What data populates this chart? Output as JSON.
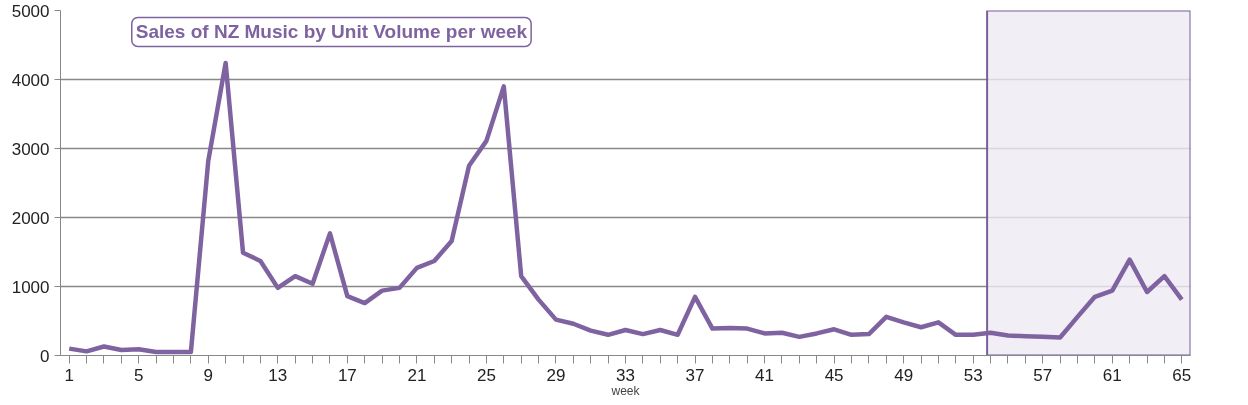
{
  "chart_data": {
    "type": "line",
    "title": "Sales of NZ Music by Unit Volume per week",
    "xlabel": "week",
    "x": [
      1,
      2,
      3,
      4,
      5,
      6,
      7,
      8,
      9,
      10,
      11,
      12,
      13,
      14,
      15,
      16,
      17,
      18,
      19,
      20,
      21,
      22,
      23,
      24,
      25,
      26,
      27,
      28,
      29,
      30,
      31,
      32,
      33,
      34,
      35,
      36,
      37,
      38,
      39,
      40,
      41,
      42,
      43,
      44,
      45,
      46,
      47,
      48,
      49,
      50,
      51,
      52,
      53,
      54,
      55,
      56,
      57,
      58,
      59,
      60,
      61,
      62,
      63,
      64,
      65
    ],
    "series": [
      {
        "color": "#7f63a1",
        "values": [
          100,
          60,
          130,
          80,
          90,
          50,
          50,
          50,
          2820,
          4240,
          1490,
          1370,
          980,
          1150,
          1040,
          1770,
          860,
          760,
          940,
          980,
          1270,
          1370,
          1660,
          2750,
          3110,
          3900,
          1150,
          810,
          520,
          460,
          360,
          300,
          370,
          310,
          370,
          300,
          850,
          390,
          400,
          390,
          320,
          330,
          270,
          320,
          380,
          300,
          310,
          560,
          480,
          410,
          480,
          300,
          300,
          330,
          290,
          280,
          270,
          260,
          560,
          850,
          940,
          1390,
          920,
          1150,
          810
        ]
      }
    ],
    "xlim": [
      0.5,
      65.5
    ],
    "ylim": [
      0,
      5000
    ],
    "yticks": [
      0,
      1000,
      2000,
      3000,
      4000,
      5000
    ],
    "xticks": [
      1,
      {
        "value": 2,
        "label": null
      },
      {
        "value": 3,
        "label": null
      },
      {
        "value": 4,
        "label": null
      },
      5,
      {
        "value": 6,
        "label": null
      },
      {
        "value": 7,
        "label": null
      },
      {
        "value": 8,
        "label": null
      },
      9,
      {
        "value": 10,
        "label": null
      },
      {
        "value": 11,
        "label": null
      },
      {
        "value": 12,
        "label": null
      },
      13,
      {
        "value": 14,
        "label": null
      },
      {
        "value": 15,
        "label": null
      },
      {
        "value": 16,
        "label": null
      },
      17,
      {
        "value": 18,
        "label": null
      },
      {
        "value": 19,
        "label": null
      },
      {
        "value": 20,
        "label": null
      },
      21,
      {
        "value": 22,
        "label": null
      },
      {
        "value": 23,
        "label": null
      },
      {
        "value": 24,
        "label": null
      },
      25,
      {
        "value": 26,
        "label": null
      },
      {
        "value": 27,
        "label": null
      },
      {
        "value": 28,
        "label": null
      },
      29,
      {
        "value": 30,
        "label": null
      },
      {
        "value": 31,
        "label": null
      },
      {
        "value": 32,
        "label": null
      },
      33,
      {
        "value": 34,
        "label": null
      },
      {
        "value": 35,
        "label": null
      },
      {
        "value": 36,
        "label": null
      },
      37,
      {
        "value": 38,
        "label": null
      },
      {
        "value": 39,
        "label": null
      },
      {
        "value": 40,
        "label": null
      },
      41,
      {
        "value": 42,
        "label": null
      },
      {
        "value": 43,
        "label": null
      },
      {
        "value": 44,
        "label": null
      },
      45,
      {
        "value": 46,
        "label": null
      },
      {
        "value": 47,
        "label": null
      },
      {
        "value": 48,
        "label": null
      },
      49,
      {
        "value": 50,
        "label": null
      },
      {
        "value": 51,
        "label": null
      },
      {
        "value": 52,
        "label": null
      },
      53,
      {
        "value": 54,
        "label": null
      },
      {
        "value": 55,
        "label": null
      },
      {
        "value": 56,
        "label": null
      },
      57,
      {
        "value": 58,
        "label": null
      },
      {
        "value": 59,
        "label": null
      },
      {
        "value": 60,
        "label": null
      },
      61,
      {
        "value": 62,
        "label": null
      },
      {
        "value": 63,
        "label": null
      },
      {
        "value": 64,
        "label": null
      },
      65
    ],
    "bands": [
      {
        "axis": "x",
        "from": 53.8,
        "to": 65.5,
        "color": "#eeeaf4"
      }
    ],
    "grid": "y",
    "line_style": "solid",
    "marker": "none"
  }
}
